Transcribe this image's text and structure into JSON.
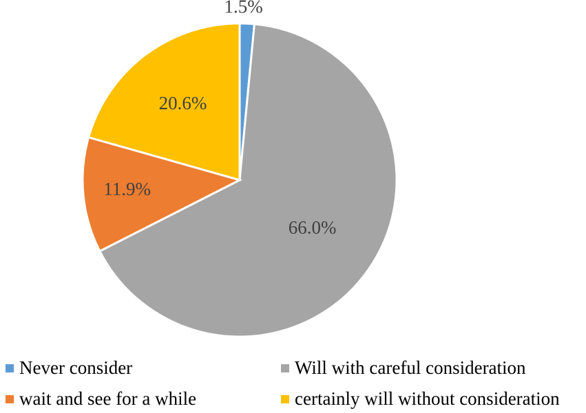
{
  "chart_data": {
    "type": "pie",
    "slices": [
      {
        "label": "Never consider",
        "value": 1.5,
        "display": "1.5%",
        "color": "#5B9BD5"
      },
      {
        "label": "Will with careful consideration",
        "value": 66.0,
        "display": "66.0%",
        "color": "#A5A5A5"
      },
      {
        "label": "wait and see for a while",
        "value": 11.9,
        "display": "11.9%",
        "color": "#ED7D31"
      },
      {
        "label": "certainly will without consideration",
        "value": 20.6,
        "display": "20.6%",
        "color": "#FFC000"
      }
    ],
    "start_angle": "12 o'clock",
    "direction": "clockwise",
    "legend_position": "bottom",
    "legend_entries": [
      "Never consider",
      "Will with careful consideration",
      "wait and see for a while",
      "certainly will without consideration"
    ]
  }
}
